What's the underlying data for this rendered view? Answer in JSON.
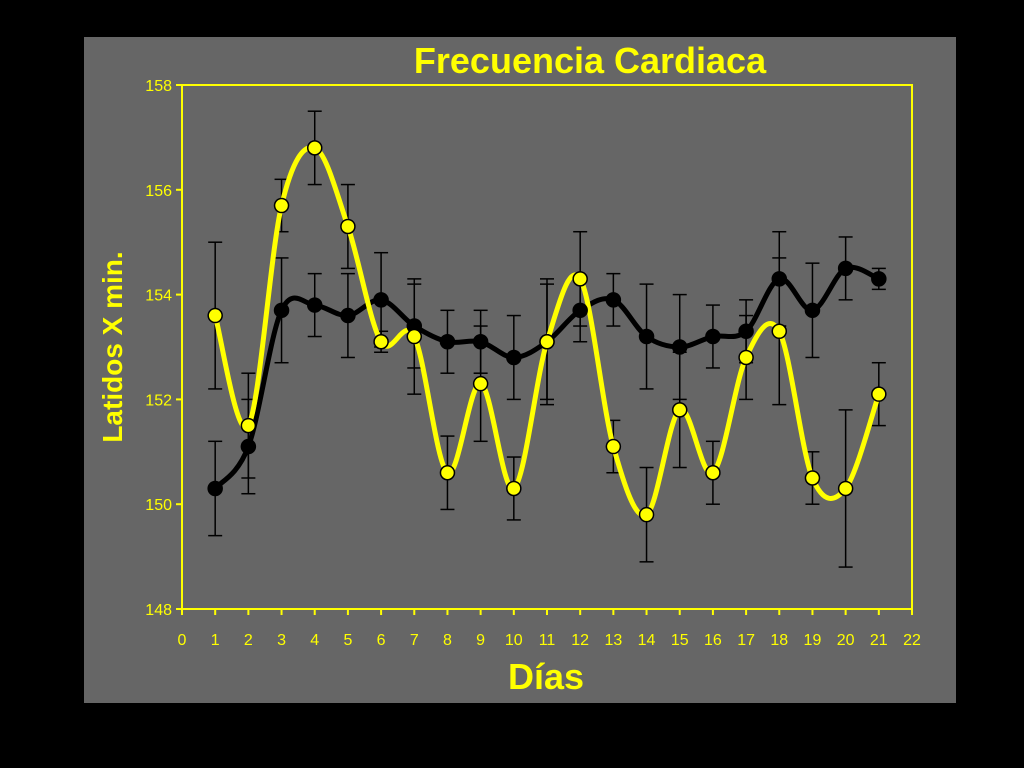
{
  "chart_data": {
    "type": "line",
    "title": "Frecuencia Cardiaca",
    "xlabel": "Días",
    "ylabel": "Latidos X min.",
    "xlim": [
      0,
      22
    ],
    "ylim": [
      148,
      158
    ],
    "xticks": [
      "0",
      "1",
      "2",
      "3",
      "4",
      "5",
      "6",
      "7",
      "8",
      "9",
      "10",
      "11",
      "12",
      "13",
      "14",
      "15",
      "16",
      "17",
      "18",
      "19",
      "20",
      "21",
      "22"
    ],
    "yticks": [
      "148",
      "150",
      "152",
      "154",
      "156",
      "158"
    ],
    "grid": false,
    "legend": "none",
    "x": [
      1,
      2,
      3,
      4,
      5,
      6,
      7,
      8,
      9,
      10,
      11,
      12,
      13,
      14,
      15,
      16,
      17,
      18,
      19,
      20,
      21
    ],
    "series": [
      {
        "color": "#000000",
        "values": [
          150.3,
          151.1,
          153.7,
          153.8,
          153.6,
          153.9,
          153.4,
          153.1,
          153.1,
          152.8,
          153.1,
          153.7,
          153.9,
          153.2,
          153.0,
          153.2,
          153.3,
          154.3,
          153.7,
          154.5,
          154.3
        ],
        "errors": [
          0.9,
          0.9,
          1.0,
          0.6,
          0.8,
          0.9,
          0.8,
          0.6,
          0.6,
          0.8,
          1.1,
          0.6,
          0.5,
          1.0,
          1.0,
          0.6,
          0.6,
          0.9,
          0.9,
          0.6,
          0.2
        ]
      },
      {
        "color": "#FFFF00",
        "values": [
          153.6,
          151.5,
          155.7,
          156.8,
          155.3,
          153.1,
          153.2,
          150.6,
          152.3,
          150.3,
          153.1,
          154.3,
          151.1,
          149.8,
          151.8,
          150.6,
          152.8,
          153.3,
          150.5,
          150.3,
          152.1
        ],
        "errors": [
          1.4,
          1.0,
          0.5,
          0.7,
          0.8,
          0.2,
          1.1,
          0.7,
          1.1,
          0.6,
          1.2,
          0.9,
          0.5,
          0.9,
          1.1,
          0.6,
          0.8,
          1.4,
          0.5,
          1.5,
          0.6
        ]
      }
    ]
  }
}
